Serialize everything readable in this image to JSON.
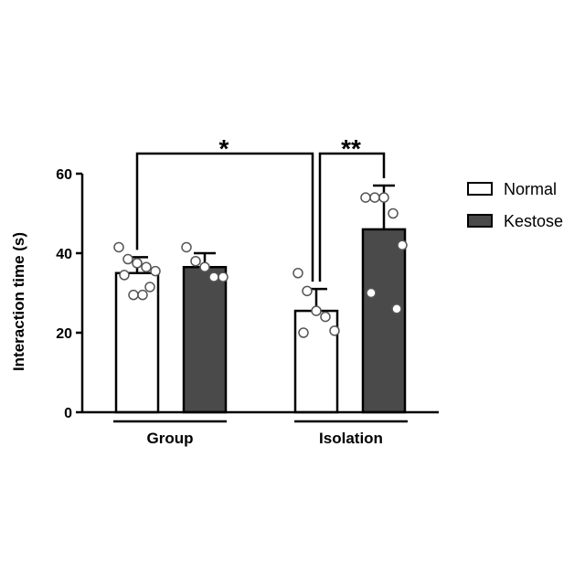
{
  "chart_data": {
    "type": "bar",
    "title": "",
    "xlabel": "",
    "ylabel": "Interaction time (s)",
    "ylim": [
      0,
      60
    ],
    "yticks": [
      0,
      20,
      40,
      60
    ],
    "grid": false,
    "legend_position": "right",
    "groups": [
      "Group",
      "Isolation"
    ],
    "series": [
      {
        "name": "Normal",
        "color": "#ffffff",
        "values": [
          35,
          25.5
        ],
        "errors": [
          4,
          5.5
        ],
        "points": [
          [
            41.5,
            38.5,
            37.5,
            36.5,
            35.5,
            34.5,
            31.5,
            29.5,
            29.5
          ],
          [
            35,
            30.5,
            25.5,
            24,
            20.5,
            20
          ]
        ]
      },
      {
        "name": "Kestose",
        "color": "#4a4a4a",
        "values": [
          36.5,
          46
        ],
        "errors": [
          3.5,
          11
        ],
        "points": [
          [
            41.5,
            38,
            36.5,
            34,
            34
          ],
          [
            54,
            54,
            54,
            50,
            42,
            30,
            26
          ]
        ]
      }
    ],
    "significance": [
      {
        "label": "*",
        "from": "Group Normal",
        "to": "Isolation Normal"
      },
      {
        "label": "**",
        "from": "Isolation Normal",
        "to": "Isolation Kestose"
      }
    ]
  },
  "colors": {
    "normal_fill": "#ffffff",
    "kestose_fill": "#4a4a4a",
    "axis": "#000000",
    "point_fill": "#ffffff",
    "point_stroke": "#555555"
  }
}
